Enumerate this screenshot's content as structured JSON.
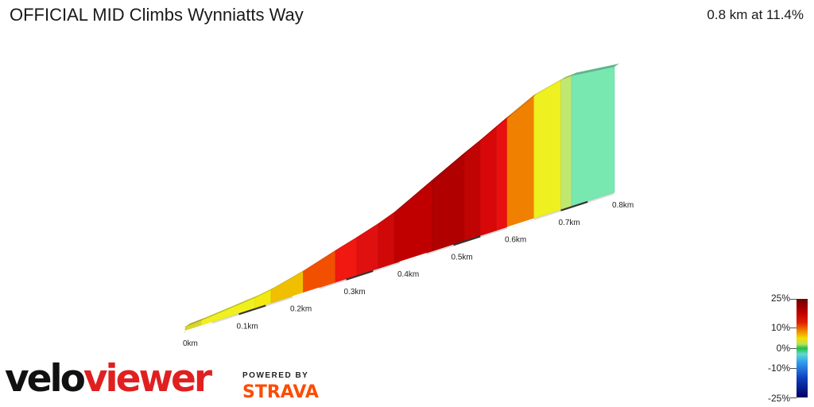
{
  "header": {
    "title": "OFFICIAL MID Climbs Wynniatts Way",
    "summary": "0.8 km at 11.4%"
  },
  "chart_data": {
    "type": "area",
    "title": "OFFICIAL MID Climbs Wynniatts Way",
    "x_unit": "km",
    "distance_ticks": [
      "0km",
      "0.1km",
      "0.2km",
      "0.3km",
      "0.4km",
      "0.5km",
      "0.6km",
      "0.7km",
      "0.8km"
    ],
    "distance_tick_values": [
      0,
      0.1,
      0.2,
      0.3,
      0.4,
      0.5,
      0.6,
      0.7,
      0.8
    ],
    "x_range": [
      0,
      0.8
    ],
    "segments": [
      {
        "start_km": 0.0,
        "end_km": 0.03,
        "color": "#d6d62e"
      },
      {
        "start_km": 0.03,
        "end_km": 0.13,
        "color": "#f0f020"
      },
      {
        "start_km": 0.13,
        "end_km": 0.16,
        "color": "#f2ea10"
      },
      {
        "start_km": 0.16,
        "end_km": 0.22,
        "color": "#f0c000"
      },
      {
        "start_km": 0.22,
        "end_km": 0.28,
        "color": "#f05000"
      },
      {
        "start_km": 0.28,
        "end_km": 0.32,
        "color": "#f01810"
      },
      {
        "start_km": 0.32,
        "end_km": 0.36,
        "color": "#e01010"
      },
      {
        "start_km": 0.36,
        "end_km": 0.39,
        "color": "#d00808"
      },
      {
        "start_km": 0.39,
        "end_km": 0.46,
        "color": "#c00000"
      },
      {
        "start_km": 0.46,
        "end_km": 0.52,
        "color": "#b00000"
      },
      {
        "start_km": 0.52,
        "end_km": 0.55,
        "color": "#c00404"
      },
      {
        "start_km": 0.55,
        "end_km": 0.58,
        "color": "#d80808"
      },
      {
        "start_km": 0.58,
        "end_km": 0.6,
        "color": "#e81010"
      },
      {
        "start_km": 0.6,
        "end_km": 0.65,
        "color": "#f08000"
      },
      {
        "start_km": 0.65,
        "end_km": 0.7,
        "color": "#eef020"
      },
      {
        "start_km": 0.7,
        "end_km": 0.72,
        "color": "#c0e870"
      },
      {
        "start_km": 0.72,
        "end_km": 0.8,
        "color": "#78e8b0"
      }
    ],
    "gradient_scale": {
      "labels": [
        "25%",
        "10%",
        "0%",
        "-10%",
        "-25%"
      ],
      "values": [
        25,
        10,
        0,
        -10,
        -25
      ]
    },
    "grid": false,
    "legend": "right"
  },
  "branding": {
    "logo_part1": "velo",
    "logo_part2": "viewer",
    "powered_by": "POWERED BY",
    "strava": "STRAVA"
  }
}
